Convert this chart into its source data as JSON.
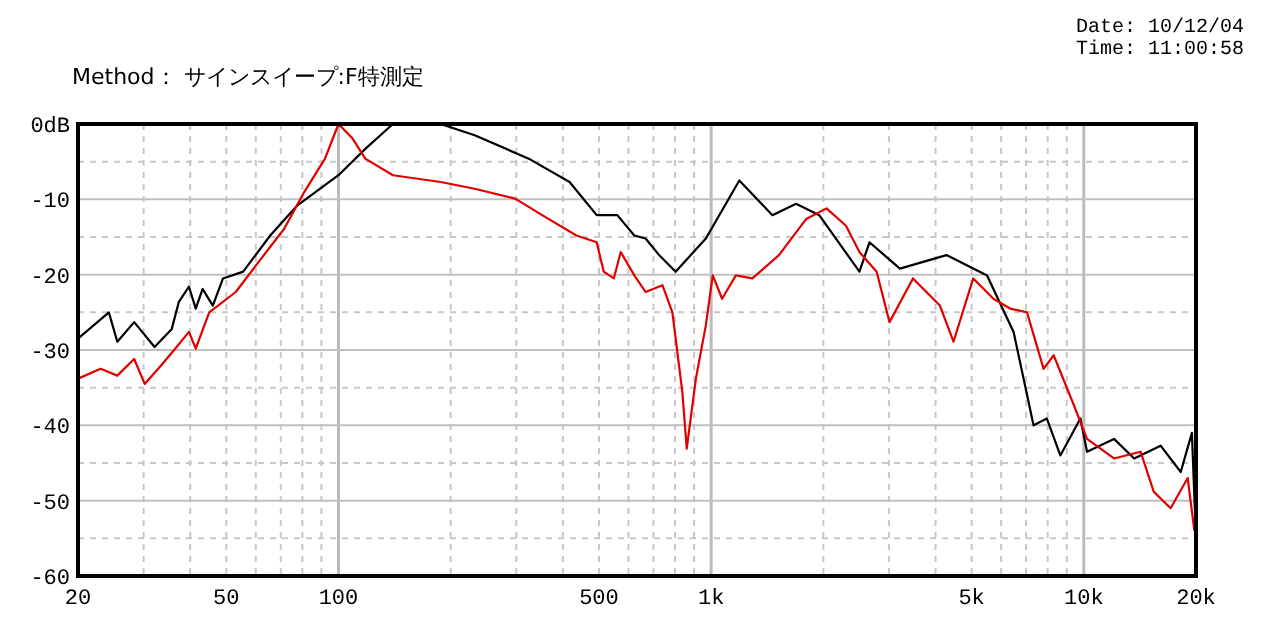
{
  "chart_data": {
    "type": "line",
    "subtitle": "Method： サインスイープ:F特測定",
    "annotations": [
      "Date: 10/12/04",
      "Time: 11:00:58"
    ],
    "log": "x",
    "grid": true,
    "marker": "none",
    "line_style": "solid",
    "xlim": [
      20,
      20000
    ],
    "ylim": [
      -60,
      0
    ],
    "xticks": [
      20,
      50,
      100,
      500,
      {
        "value": 1000,
        "label": "1k"
      },
      {
        "value": 5000,
        "label": "5k"
      },
      {
        "value": 10000,
        "label": "10k"
      },
      {
        "value": 20000,
        "label": "20k"
      }
    ],
    "yticks": [
      -60,
      -50,
      -40,
      -30,
      -20,
      -10,
      {
        "value": 0,
        "label": "0dB"
      }
    ],
    "series": [
      {
        "color": "#000000",
        "x": [
          20,
          24.2,
          25.5,
          28.3,
          32.1,
          35.7,
          37.3,
          39.7,
          41.4,
          43.2,
          46,
          49,
          55.5,
          65.6,
          77.6,
          100,
          118,
          140,
          188,
          232,
          324,
          417,
          493,
          560,
          622,
          667,
          725,
          803,
          968,
          1190,
          1460,
          1690,
          1950,
          2500,
          2660,
          3210,
          4280,
          5500,
          6480,
          7330,
          7960,
          8650,
          9790,
          10200,
          12050,
          13650,
          16070,
          18200,
          19500,
          20000
        ],
        "values": [
          -28.5,
          -25,
          -28.9,
          -26.3,
          -29.6,
          -27.2,
          -23.6,
          -21.6,
          -24.5,
          -21.9,
          -24.1,
          -20.5,
          -19.6,
          -14.8,
          -10.8,
          -6.8,
          -3.3,
          0,
          0,
          -1.5,
          -4.6,
          -7.7,
          -12.1,
          -12.1,
          -14.8,
          -15.2,
          -17.4,
          -19.6,
          -15.2,
          -7.5,
          -12.1,
          -10.6,
          -12.1,
          -19.6,
          -15.7,
          -19.2,
          -17.4,
          -20.1,
          -27.6,
          -40,
          -39.1,
          -44,
          -39.1,
          -43.5,
          -41.8,
          -44.4,
          -42.7,
          -46.2,
          -41,
          -55
        ]
      },
      {
        "color": "#e00000",
        "x": [
          20,
          23,
          25.5,
          28.3,
          30.2,
          33.5,
          36.5,
          39.7,
          41.4,
          45,
          53,
          60,
          71.5,
          81,
          92,
          100,
          109,
          118,
          140,
          188,
          232,
          298,
          352,
          435,
          493,
          515,
          548,
          572,
          622,
          667,
          740,
          787,
          837,
          860,
          910,
          968,
          1010,
          1070,
          1165,
          1290,
          1520,
          1800,
          2040,
          2300,
          2500,
          2780,
          3010,
          3480,
          4110,
          4470,
          5050,
          5720,
          6340,
          7040,
          7800,
          8300,
          9400,
          10200,
          12050,
          14200,
          15400,
          17100,
          19000,
          19800
        ],
        "values": [
          -33.8,
          -32.5,
          -33.4,
          -31.2,
          -34.5,
          -32,
          -29.8,
          -27.6,
          -29.8,
          -25,
          -22.3,
          -18.8,
          -13.9,
          -9,
          -4.6,
          0,
          -1.9,
          -4.6,
          -6.8,
          -7.7,
          -8.6,
          -9.9,
          -12.1,
          -14.8,
          -15.7,
          -19.6,
          -20.5,
          -17,
          -20.1,
          -22.3,
          -21.4,
          -25,
          -35.6,
          -43.1,
          -33.8,
          -26.7,
          -20.1,
          -23.2,
          -20.1,
          -20.5,
          -17.4,
          -12.6,
          -11.2,
          -13.5,
          -17,
          -19.6,
          -26.3,
          -20.5,
          -24.1,
          -28.9,
          -20.5,
          -23.2,
          -24.5,
          -25,
          -32.5,
          -30.7,
          -37.3,
          -41.8,
          -44.4,
          -43.5,
          -48.8,
          -51,
          -47,
          -54
        ]
      }
    ]
  }
}
